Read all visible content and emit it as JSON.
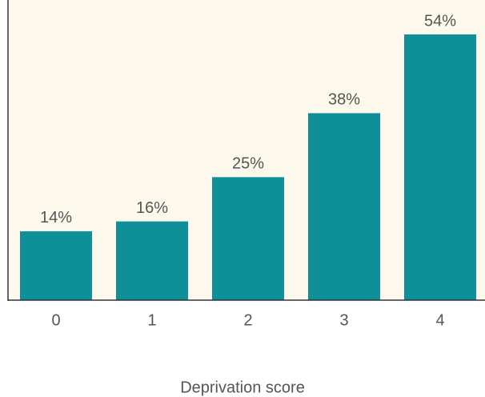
{
  "chart_data": {
    "type": "bar",
    "x_label": "Deprivation score",
    "categories": [
      "0",
      "1",
      "2",
      "3",
      "4"
    ],
    "values": [
      14,
      16,
      25,
      38,
      54
    ],
    "value_labels": [
      "14%",
      "16%",
      "25%",
      "38%",
      "54%"
    ],
    "color": "#0e8f9a",
    "ylim": [
      0,
      61
    ]
  }
}
